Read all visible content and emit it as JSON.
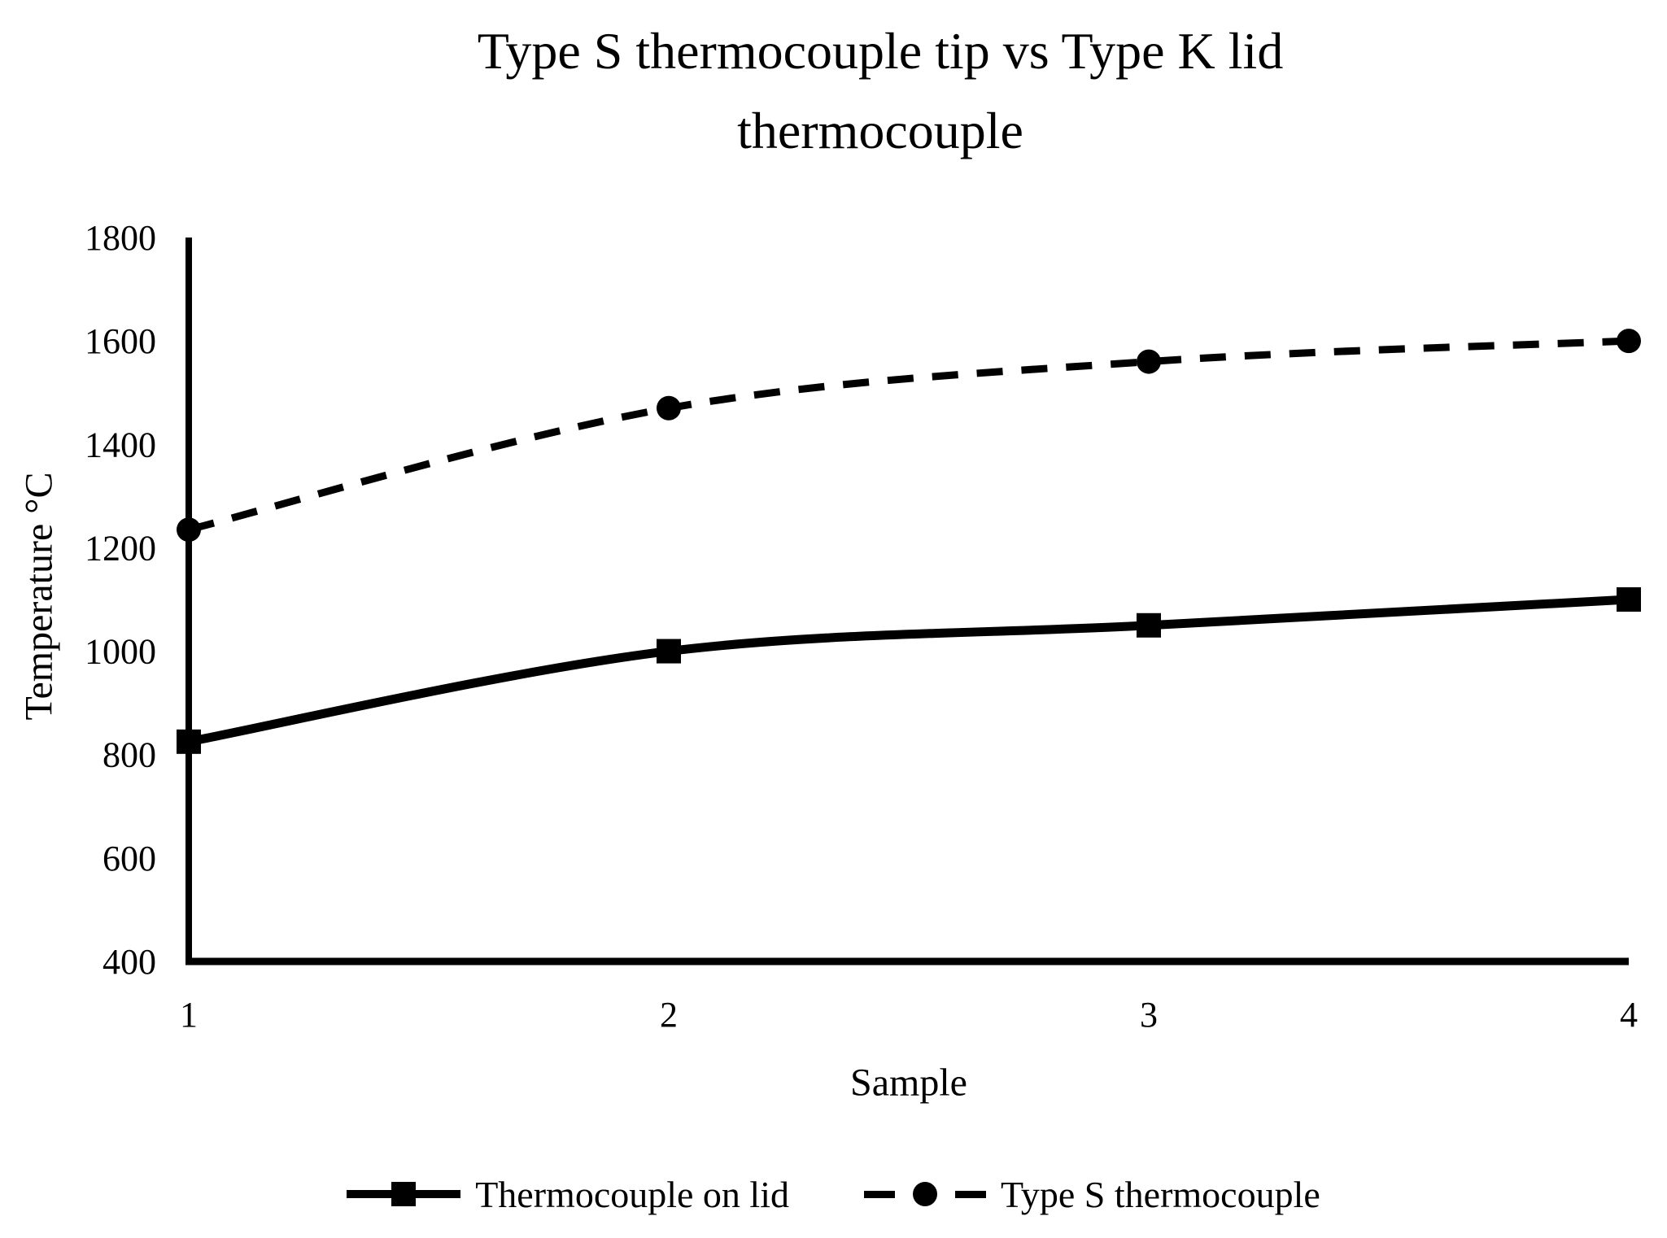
{
  "title": {
    "line1": "Type S thermocouple tip vs Type K lid",
    "line2": "thermocouple"
  },
  "chart_data": {
    "type": "line",
    "title": "Type S thermocouple tip vs Type K lid thermocouple",
    "categories": [
      "1",
      "2",
      "3",
      "4"
    ],
    "series": [
      {
        "name": "Thermocouple on lid",
        "values": [
          825,
          1000,
          1050,
          1100
        ],
        "line_style": "solid",
        "marker": "square"
      },
      {
        "name": "Type S thermocouple",
        "values": [
          1235,
          1470,
          1560,
          1600
        ],
        "line_style": "dashed",
        "marker": "circle"
      }
    ],
    "xlabel": "Sample",
    "ylabel": "Temperature °C",
    "ylim": [
      400,
      1800
    ],
    "ytick_step": 200,
    "yticks": [
      400,
      600,
      800,
      1000,
      1200,
      1400,
      1600,
      1800
    ],
    "grid": false,
    "legend_position": "bottom",
    "smoothed_lines": true
  },
  "colors": {
    "line": "#000000",
    "text": "#000000",
    "background": "#ffffff"
  }
}
